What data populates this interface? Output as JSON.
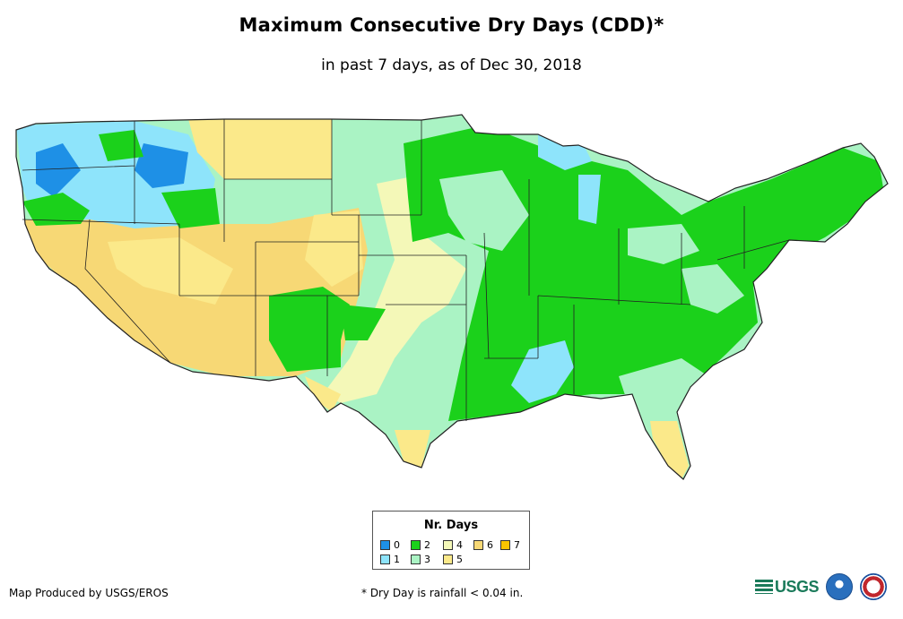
{
  "title": "Maximum Consecutive Dry Days (CDD)*",
  "subtitle": "in past 7 days, as of Dec 30, 2018",
  "legend": {
    "title": "Nr. Days",
    "items": [
      {
        "label": "0",
        "color": "#1e90e6"
      },
      {
        "label": "1",
        "color": "#8ee4fb"
      },
      {
        "label": "2",
        "color": "#1bd11b"
      },
      {
        "label": "3",
        "color": "#aaf3c4"
      },
      {
        "label": "4",
        "color": "#f4f8b8"
      },
      {
        "label": "5",
        "color": "#fbe98a"
      },
      {
        "label": "6",
        "color": "#f7d875"
      },
      {
        "label": "7",
        "color": "#f9c400"
      }
    ]
  },
  "footer": {
    "credit": "Map Produced by USGS/EROS",
    "footnote": "* Dry Day is rainfall < 0.04 in.",
    "usgs_logo_text": "USGS"
  },
  "map": {
    "region": "Contiguous United States",
    "colors": {
      "d0": "#1e90e6",
      "d1": "#8ee4fb",
      "d2": "#1bd11b",
      "d3": "#aaf3c4",
      "d4": "#f4f8b8",
      "d5": "#fbe98a",
      "d6": "#f7d875",
      "d7": "#f9c400",
      "border": "#222222"
    }
  }
}
